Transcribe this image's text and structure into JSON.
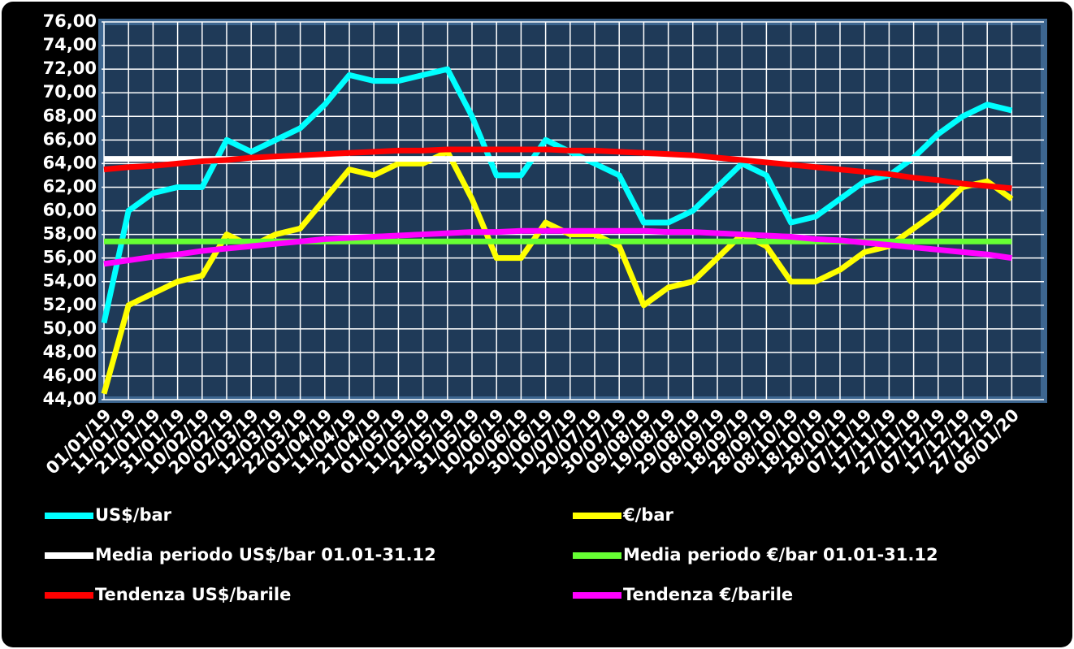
{
  "chart_data": {
    "type": "line",
    "categories": [
      "01/01/19",
      "11/01/19",
      "21/01/19",
      "31/01/19",
      "10/02/19",
      "20/02/19",
      "02/03/19",
      "12/03/19",
      "22/03/19",
      "01/04/19",
      "11/04/19",
      "21/04/19",
      "01/05/19",
      "11/05/19",
      "21/05/19",
      "31/05/19",
      "10/06/19",
      "20/06/19",
      "30/06/19",
      "10/07/19",
      "20/07/19",
      "30/07/19",
      "09/08/19",
      "19/08/19",
      "29/08/19",
      "08/09/19",
      "18/09/19",
      "28/09/19",
      "08/10/19",
      "18/10/19",
      "28/10/19",
      "07/11/19",
      "17/11/19",
      "27/11/19",
      "07/12/19",
      "17/12/19",
      "27/12/19",
      "06/01/20"
    ],
    "series": [
      {
        "name": "US$/bar",
        "color": "#00ffff",
        "values": [
          50.5,
          60,
          61.5,
          62,
          62,
          66,
          65,
          66,
          67,
          69,
          71.5,
          71,
          71,
          71.5,
          72,
          68,
          63,
          63,
          66,
          65,
          64,
          63,
          59,
          59,
          60,
          62,
          64,
          63,
          59,
          59.5,
          61,
          62.5,
          63,
          64.5,
          66.5,
          68,
          69,
          68.5
        ]
      },
      {
        "name": "€/bar",
        "color": "#ffff00",
        "values": [
          44.5,
          52,
          53,
          54,
          54.5,
          58,
          57,
          58,
          58.5,
          61,
          63.5,
          63,
          64,
          64,
          65,
          61,
          56,
          56,
          59,
          58,
          58,
          57,
          52,
          53.5,
          54,
          56,
          58,
          57,
          54,
          54,
          55,
          56.5,
          57,
          58.5,
          60,
          62,
          62.5,
          61
        ]
      },
      {
        "name": "Media periodo US$/bar 01.01-31.12",
        "color": "#ffffff",
        "values": [
          64.4,
          64.4,
          64.4,
          64.4,
          64.4,
          64.4,
          64.4,
          64.4,
          64.4,
          64.4,
          64.4,
          64.4,
          64.4,
          64.4,
          64.4,
          64.4,
          64.4,
          64.4,
          64.4,
          64.4,
          64.4,
          64.4,
          64.4,
          64.4,
          64.4,
          64.4,
          64.4,
          64.4,
          64.4,
          64.4,
          64.4,
          64.4,
          64.4,
          64.4,
          64.4,
          64.4,
          64.4,
          64.4
        ]
      },
      {
        "name": "Media periodo €/bar 01.01-31.12",
        "color": "#66ff33",
        "values": [
          57.4,
          57.4,
          57.4,
          57.4,
          57.4,
          57.4,
          57.4,
          57.4,
          57.4,
          57.4,
          57.4,
          57.4,
          57.4,
          57.4,
          57.4,
          57.4,
          57.4,
          57.4,
          57.4,
          57.4,
          57.4,
          57.4,
          57.4,
          57.4,
          57.4,
          57.4,
          57.4,
          57.4,
          57.4,
          57.4,
          57.4,
          57.4,
          57.4,
          57.4,
          57.4,
          57.4,
          57.4,
          57.4
        ]
      },
      {
        "name": "Tendenza US$/barile",
        "color": "#ff0000",
        "values": [
          63.5,
          63.7,
          63.8,
          64.0,
          64.2,
          64.3,
          64.5,
          64.6,
          64.7,
          64.8,
          64.9,
          65.0,
          65.1,
          65.1,
          65.2,
          65.2,
          65.2,
          65.2,
          65.2,
          65.1,
          65.1,
          65.0,
          64.9,
          64.8,
          64.7,
          64.5,
          64.3,
          64.1,
          63.9,
          63.7,
          63.5,
          63.3,
          63.1,
          62.8,
          62.6,
          62.3,
          62.1,
          61.9
        ]
      },
      {
        "name": "Tendenza €/barile",
        "color": "#ff00ff",
        "values": [
          55.5,
          55.8,
          56.1,
          56.3,
          56.6,
          56.8,
          57.0,
          57.2,
          57.4,
          57.6,
          57.7,
          57.8,
          57.9,
          58.0,
          58.1,
          58.2,
          58.2,
          58.3,
          58.3,
          58.3,
          58.3,
          58.3,
          58.3,
          58.2,
          58.2,
          58.1,
          58.0,
          57.9,
          57.8,
          57.6,
          57.5,
          57.3,
          57.1,
          56.9,
          56.7,
          56.5,
          56.3,
          56.0
        ]
      }
    ],
    "ylim": [
      44,
      76
    ],
    "yticks": [
      {
        "value": 44,
        "label": "44,00"
      },
      {
        "value": 46,
        "label": "46,00"
      },
      {
        "value": 48,
        "label": "48,00"
      },
      {
        "value": 50,
        "label": "50,00"
      },
      {
        "value": 52,
        "label": "52,00"
      },
      {
        "value": 54,
        "label": "54,00"
      },
      {
        "value": 56,
        "label": "56,00"
      },
      {
        "value": 58,
        "label": "58,00"
      },
      {
        "value": 60,
        "label": "60,00"
      },
      {
        "value": 62,
        "label": "62,00"
      },
      {
        "value": 64,
        "label": "64,00"
      },
      {
        "value": 66,
        "label": "66,00"
      },
      {
        "value": 68,
        "label": "68,00"
      },
      {
        "value": 70,
        "label": "70,00"
      },
      {
        "value": 72,
        "label": "72,00"
      },
      {
        "value": 74,
        "label": "74,00"
      },
      {
        "value": 76,
        "label": "76,00"
      }
    ],
    "grid": true,
    "legend": "bottom"
  }
}
